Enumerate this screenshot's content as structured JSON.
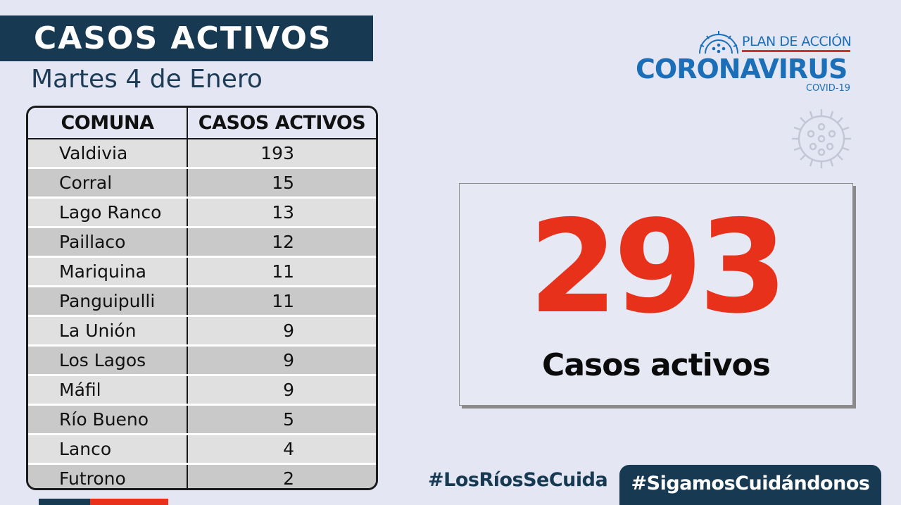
{
  "header": {
    "title": "CASOS ACTIVOS",
    "date": "Martes 4 de Enero"
  },
  "table": {
    "columns": [
      "COMUNA",
      "CASOS ACTIVOS"
    ],
    "rows": [
      {
        "comuna": "Valdivia",
        "casos": "193"
      },
      {
        "comuna": "Corral",
        "casos": "15"
      },
      {
        "comuna": "Lago Ranco",
        "casos": "13"
      },
      {
        "comuna": "Paillaco",
        "casos": "12"
      },
      {
        "comuna": "Mariquina",
        "casos": "11"
      },
      {
        "comuna": "Panguipulli",
        "casos": "11"
      },
      {
        "comuna": "La Unión",
        "casos": "9"
      },
      {
        "comuna": "Los Lagos",
        "casos": "9"
      },
      {
        "comuna": "Máfil",
        "casos": "9"
      },
      {
        "comuna": "Río Bueno",
        "casos": "5"
      },
      {
        "comuna": "Lanco",
        "casos": "4"
      },
      {
        "comuna": "Futrono",
        "casos": "2"
      }
    ]
  },
  "logo": {
    "line1": "PLAN DE ACCIÓN",
    "line2": "CORONAVIRUS",
    "line3": "COVID-19",
    "icon": "virus-icon"
  },
  "total": {
    "value": "293",
    "label": "Casos activos"
  },
  "footer": {
    "hashtag_region": "#LosRíosSeCuida",
    "hashtag_campaign": "#SigamosCuidándonos"
  },
  "colors": {
    "navy": "#173a52",
    "red": "#e8311a",
    "blue": "#1b6fb8",
    "background": "#e4e7f3"
  }
}
